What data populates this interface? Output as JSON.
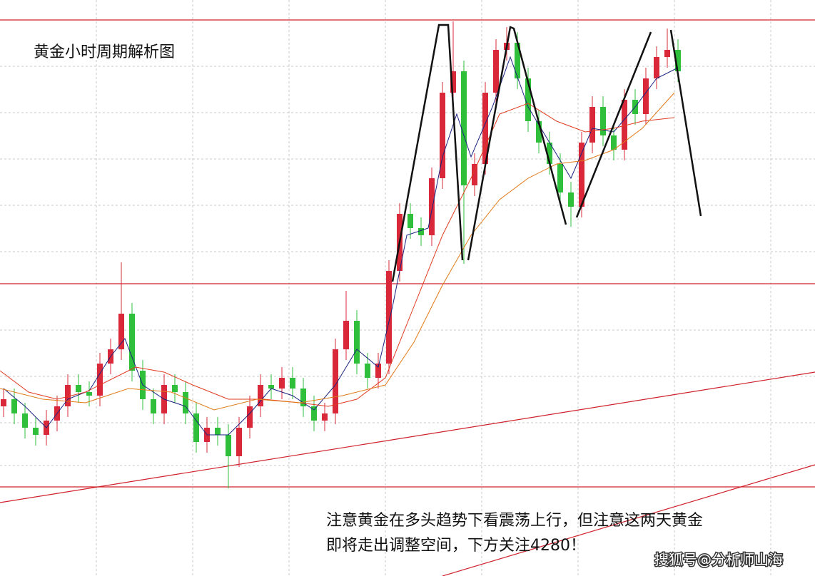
{
  "chart_data": {
    "type": "candlestick",
    "title": "黄金小时周期解析图",
    "annotation_lines": [
      "注意黄金在多头趋势下看震荡上行，但注意这两天黄金",
      "即将走出调整空间，下方关注4280！"
    ],
    "watermark": "搜狐号@分析师山海",
    "up_color": "#d8283a",
    "down_color": "#2fbf3a",
    "ylim": [
      0,
      808
    ],
    "open": [
      238,
      248,
      228,
      208,
      198,
      218,
      238,
      268,
      258,
      253,
      298,
      318,
      368,
      288,
      248,
      228,
      268,
      258,
      228,
      188,
      208,
      198,
      168,
      208,
      238,
      268,
      263,
      278,
      263,
      238,
      218,
      228,
      318,
      358,
      298,
      278,
      298,
      428,
      508,
      488,
      478,
      558,
      678,
      708,
      548,
      578,
      678,
      738,
      748,
      698,
      638,
      608,
      578,
      538,
      518,
      608,
      658,
      618,
      598,
      668,
      648,
      698,
      728,
      738
    ],
    "high": [
      263,
      263,
      243,
      223,
      233,
      253,
      283,
      283,
      273,
      313,
      333,
      440,
      383,
      303,
      263,
      283,
      283,
      273,
      243,
      223,
      223,
      213,
      223,
      253,
      283,
      283,
      293,
      293,
      278,
      253,
      243,
      333,
      400,
      373,
      313,
      313,
      443,
      523,
      523,
      503,
      573,
      693,
      778,
      723,
      593,
      693,
      753,
      770,
      763,
      713,
      653,
      623,
      593,
      553,
      623,
      673,
      673,
      633,
      683,
      683,
      713,
      743,
      768,
      753
    ],
    "low": [
      223,
      213,
      193,
      183,
      183,
      203,
      223,
      243,
      238,
      238,
      283,
      303,
      273,
      233,
      213,
      213,
      243,
      213,
      173,
      173,
      183,
      123,
      153,
      193,
      223,
      248,
      248,
      248,
      223,
      203,
      203,
      213,
      303,
      283,
      263,
      263,
      283,
      413,
      473,
      463,
      463,
      543,
      663,
      438,
      533,
      563,
      663,
      723,
      683,
      623,
      593,
      563,
      523,
      490,
      503,
      593,
      603,
      583,
      583,
      633,
      633,
      683,
      713,
      693
    ],
    "close": [
      248,
      228,
      208,
      198,
      218,
      238,
      268,
      258,
      253,
      298,
      318,
      368,
      288,
      248,
      228,
      268,
      258,
      228,
      188,
      208,
      198,
      168,
      208,
      238,
      268,
      263,
      278,
      263,
      238,
      218,
      228,
      318,
      358,
      298,
      278,
      298,
      428,
      508,
      488,
      478,
      558,
      678,
      708,
      548,
      578,
      678,
      738,
      748,
      698,
      638,
      608,
      578,
      538,
      518,
      608,
      658,
      618,
      598,
      668,
      648,
      698,
      728,
      738,
      708
    ]
  }
}
